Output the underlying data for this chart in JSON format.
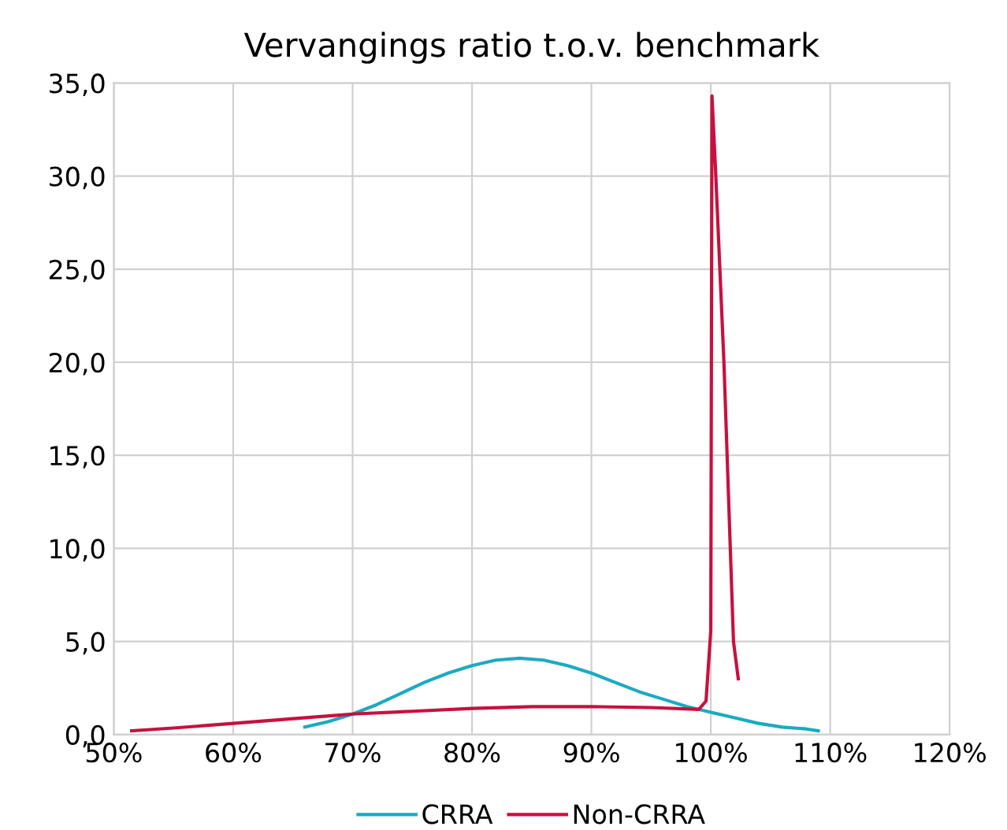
{
  "chart_data": {
    "type": "line",
    "title": "Vervangings ratio t.o.v. benchmark",
    "xlim": [
      50,
      120
    ],
    "xticks": [
      {
        "value": 50,
        "label": "50%"
      },
      {
        "value": 60,
        "label": "60%"
      },
      {
        "value": 70,
        "label": "70%"
      },
      {
        "value": 80,
        "label": "80%"
      },
      {
        "value": 90,
        "label": "90%"
      },
      {
        "value": 100,
        "label": "100%"
      },
      {
        "value": 110,
        "label": "110%"
      },
      {
        "value": 120,
        "label": "120%"
      }
    ],
    "ylim": [
      0,
      35
    ],
    "yticks": [
      {
        "value": 0,
        "label": "0,0"
      },
      {
        "value": 5,
        "label": "5,0"
      },
      {
        "value": 10,
        "label": "10,0"
      },
      {
        "value": 15,
        "label": "15,0"
      },
      {
        "value": 20,
        "label": "20,0"
      },
      {
        "value": 25,
        "label": "25,0"
      },
      {
        "value": 30,
        "label": "30,0"
      },
      {
        "value": 35,
        "label": "35,0"
      }
    ],
    "grid": true,
    "legend": "bottom",
    "marker": "none",
    "series": [
      {
        "name": "CRRA",
        "color": "#1aabc0",
        "x": [
          66,
          68,
          70,
          72,
          74,
          76,
          78,
          80,
          82,
          84,
          86,
          88,
          90,
          92,
          94,
          96,
          98,
          100,
          102,
          104,
          106,
          108,
          109
        ],
        "values": [
          0.4,
          0.7,
          1.1,
          1.6,
          2.2,
          2.8,
          3.3,
          3.7,
          4.0,
          4.1,
          4.0,
          3.7,
          3.3,
          2.8,
          2.3,
          1.9,
          1.5,
          1.2,
          0.9,
          0.6,
          0.4,
          0.3,
          0.2
        ]
      },
      {
        "name": "Non-CRRA",
        "color": "#c8103e",
        "x": [
          51.5,
          55,
          60,
          65,
          68,
          70,
          75,
          80,
          85,
          90,
          95,
          99,
          99.6,
          100,
          100.1,
          100.4,
          101.1,
          101.9,
          102.3
        ],
        "values": [
          0.2,
          0.35,
          0.6,
          0.85,
          1.0,
          1.1,
          1.25,
          1.4,
          1.5,
          1.5,
          1.45,
          1.35,
          1.8,
          5.6,
          34.3,
          30.3,
          20,
          5.0,
          3.0
        ]
      }
    ]
  }
}
